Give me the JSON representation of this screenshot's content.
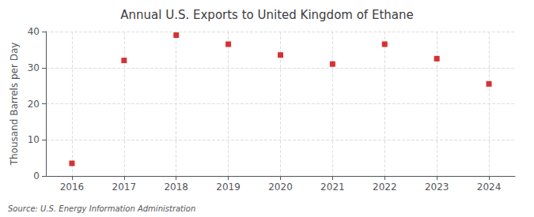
{
  "chart_data": {
    "type": "scatter",
    "title": "Annual U.S. Exports to United Kingdom of Ethane",
    "ylabel": "Thousand Barrels per Day",
    "source": "Source: U.S. Energy Information Administration",
    "x": [
      2016,
      2017,
      2018,
      2019,
      2020,
      2021,
      2022,
      2023,
      2024
    ],
    "values": [
      3.5,
      32.0,
      39.0,
      36.5,
      33.5,
      31.0,
      36.5,
      32.5,
      25.5
    ],
    "color": "#cc0000",
    "marker": "square",
    "xlim": [
      2015.5,
      2024.5
    ],
    "xticks": [
      2016,
      2017,
      2018,
      2019,
      2020,
      2021,
      2022,
      2023,
      2024
    ],
    "ylim": [
      0,
      40
    ],
    "yticks": [
      0,
      10,
      20,
      30,
      40
    ],
    "grid": true
  }
}
